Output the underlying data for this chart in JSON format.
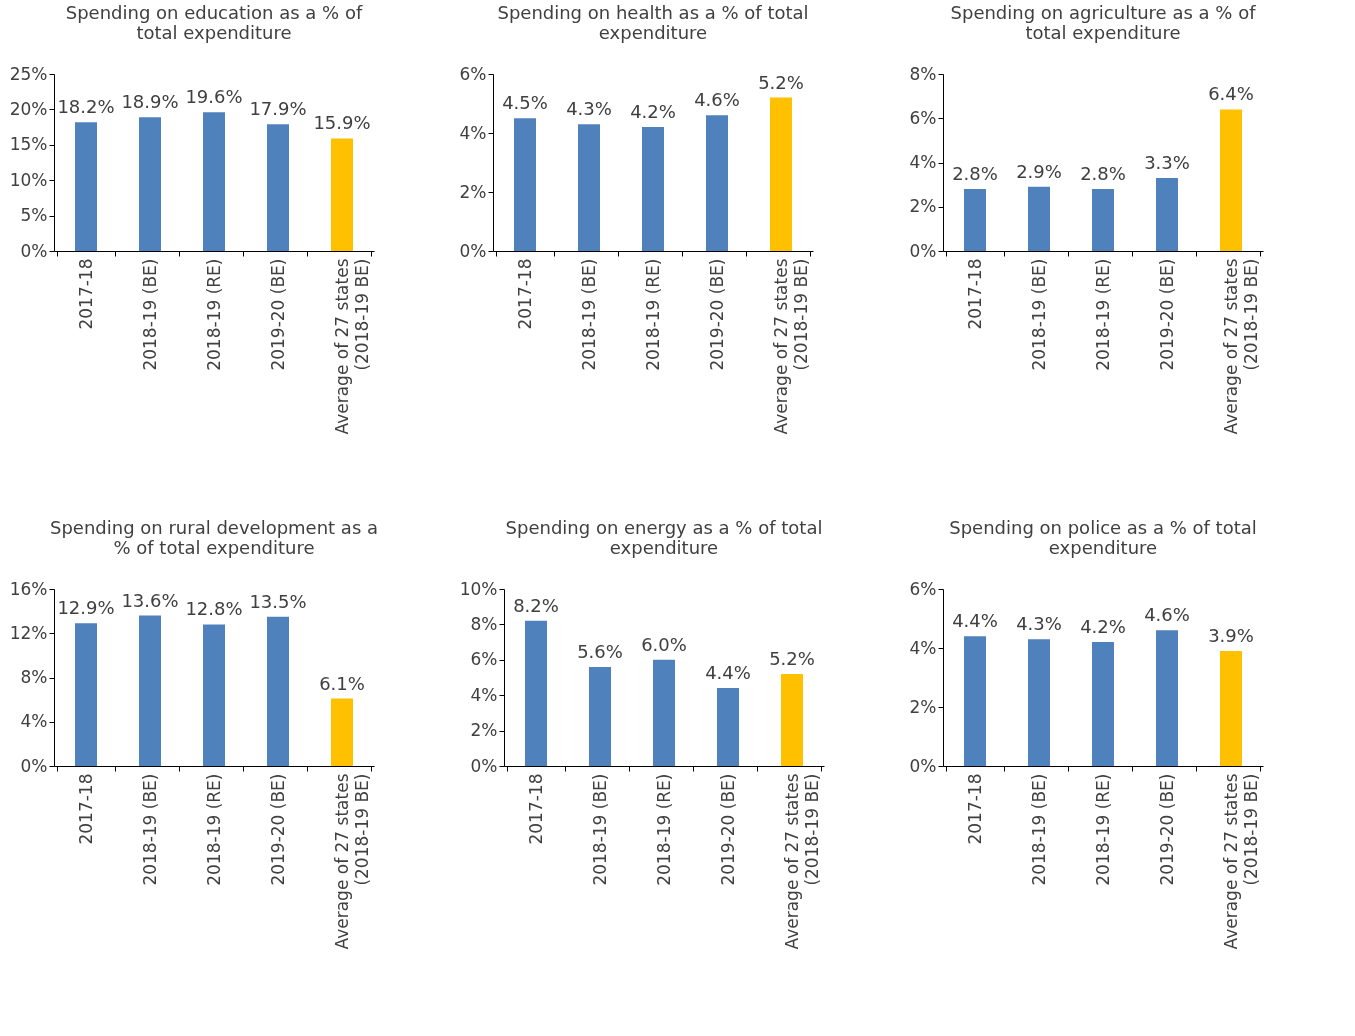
{
  "chart_data": [
    {
      "type": "bar",
      "title": "Spending on education as a % of total expenditure",
      "categories": [
        "2017-18",
        "2018-19 (BE)",
        "2018-19 (RE)",
        "2019-20 (BE)",
        "Average of 27 states (2018-19 BE)"
      ],
      "values": [
        18.2,
        18.9,
        19.6,
        17.9,
        15.9
      ],
      "colors": [
        "#4f81bd",
        "#4f81bd",
        "#4f81bd",
        "#4f81bd",
        "#ffc000"
      ],
      "value_labels": [
        "18.2%",
        "18.9%",
        "19.6%",
        "17.9%",
        "15.9%"
      ],
      "ylim": [
        0,
        25
      ],
      "yticks": [
        {
          "value": 0,
          "label": "0%"
        },
        {
          "value": 5,
          "label": "5%"
        },
        {
          "value": 10,
          "label": "10%"
        },
        {
          "value": 15,
          "label": "15%"
        },
        {
          "value": 20,
          "label": "20%"
        },
        {
          "value": 25,
          "label": "25%"
        }
      ],
      "grid": false
    },
    {
      "type": "bar",
      "title": "Spending on health as a % of total expenditure",
      "categories": [
        "2017-18",
        "2018-19 (BE)",
        "2018-19 (RE)",
        "2019-20 (BE)",
        "Average of 27 states (2018-19 BE)"
      ],
      "values": [
        4.5,
        4.3,
        4.2,
        4.6,
        5.2
      ],
      "colors": [
        "#4f81bd",
        "#4f81bd",
        "#4f81bd",
        "#4f81bd",
        "#ffc000"
      ],
      "value_labels": [
        "4.5%",
        "4.3%",
        "4.2%",
        "4.6%",
        "5.2%"
      ],
      "ylim": [
        0,
        6
      ],
      "yticks": [
        {
          "value": 0,
          "label": "0%"
        },
        {
          "value": 2,
          "label": "2%"
        },
        {
          "value": 4,
          "label": "4%"
        },
        {
          "value": 6,
          "label": "6%"
        }
      ],
      "grid": false
    },
    {
      "type": "bar",
      "title": "Spending on agriculture as a % of total expenditure",
      "categories": [
        "2017-18",
        "2018-19 (BE)",
        "2018-19 (RE)",
        "2019-20 (BE)",
        "Average of 27 states (2018-19 BE)"
      ],
      "values": [
        2.8,
        2.9,
        2.8,
        3.3,
        6.4
      ],
      "colors": [
        "#4f81bd",
        "#4f81bd",
        "#4f81bd",
        "#4f81bd",
        "#ffc000"
      ],
      "value_labels": [
        "2.8%",
        "2.9%",
        "2.8%",
        "3.3%",
        "6.4%"
      ],
      "ylim": [
        0,
        8
      ],
      "yticks": [
        {
          "value": 0,
          "label": "0%"
        },
        {
          "value": 2,
          "label": "2%"
        },
        {
          "value": 4,
          "label": "4%"
        },
        {
          "value": 6,
          "label": "6%"
        },
        {
          "value": 8,
          "label": "8%"
        }
      ],
      "grid": false
    },
    {
      "type": "bar",
      "title": "Spending on rural development as a % of total expenditure",
      "categories": [
        "2017-18",
        "2018-19 (BE)",
        "2018-19 (RE)",
        "2019-20 (BE)",
        "Average of 27 states (2018-19 BE)"
      ],
      "values": [
        12.9,
        13.6,
        12.8,
        13.5,
        6.1
      ],
      "colors": [
        "#4f81bd",
        "#4f81bd",
        "#4f81bd",
        "#4f81bd",
        "#ffc000"
      ],
      "value_labels": [
        "12.9%",
        "13.6%",
        "12.8%",
        "13.5%",
        "6.1%"
      ],
      "ylim": [
        0,
        16
      ],
      "yticks": [
        {
          "value": 0,
          "label": "0%"
        },
        {
          "value": 4,
          "label": "4%"
        },
        {
          "value": 8,
          "label": "8%"
        },
        {
          "value": 12,
          "label": "12%"
        },
        {
          "value": 16,
          "label": "16%"
        }
      ],
      "grid": false
    },
    {
      "type": "bar",
      "title": "Spending on energy as a % of total expenditure",
      "categories": [
        "2017-18",
        "2018-19 (BE)",
        "2018-19 (RE)",
        "2019-20 (BE)",
        "Average of 27 states (2018-19 BE)"
      ],
      "values": [
        8.2,
        5.6,
        6.0,
        4.4,
        5.2
      ],
      "colors": [
        "#4f81bd",
        "#4f81bd",
        "#4f81bd",
        "#4f81bd",
        "#ffc000"
      ],
      "value_labels": [
        "8.2%",
        "5.6%",
        "6.0%",
        "4.4%",
        "5.2%"
      ],
      "ylim": [
        0,
        10
      ],
      "yticks": [
        {
          "value": 0,
          "label": "0%"
        },
        {
          "value": 2,
          "label": "2%"
        },
        {
          "value": 4,
          "label": "4%"
        },
        {
          "value": 6,
          "label": "6%"
        },
        {
          "value": 8,
          "label": "8%"
        },
        {
          "value": 10,
          "label": "10%"
        }
      ],
      "grid": false
    },
    {
      "type": "bar",
      "title": "Spending on police as a % of total expenditure",
      "categories": [
        "2017-18",
        "2018-19 (BE)",
        "2018-19 (RE)",
        "2019-20 (BE)",
        "Average of 27 states (2018-19 BE)"
      ],
      "values": [
        4.4,
        4.3,
        4.2,
        4.6,
        3.9
      ],
      "colors": [
        "#4f81bd",
        "#4f81bd",
        "#4f81bd",
        "#4f81bd",
        "#ffc000"
      ],
      "value_labels": [
        "4.4%",
        "4.3%",
        "4.2%",
        "4.6%",
        "3.9%"
      ],
      "ylim": [
        0,
        6
      ],
      "yticks": [
        {
          "value": 0,
          "label": "0%"
        },
        {
          "value": 2,
          "label": "2%"
        },
        {
          "value": 4,
          "label": "4%"
        },
        {
          "value": 6,
          "label": "6%"
        }
      ],
      "grid": false
    }
  ]
}
